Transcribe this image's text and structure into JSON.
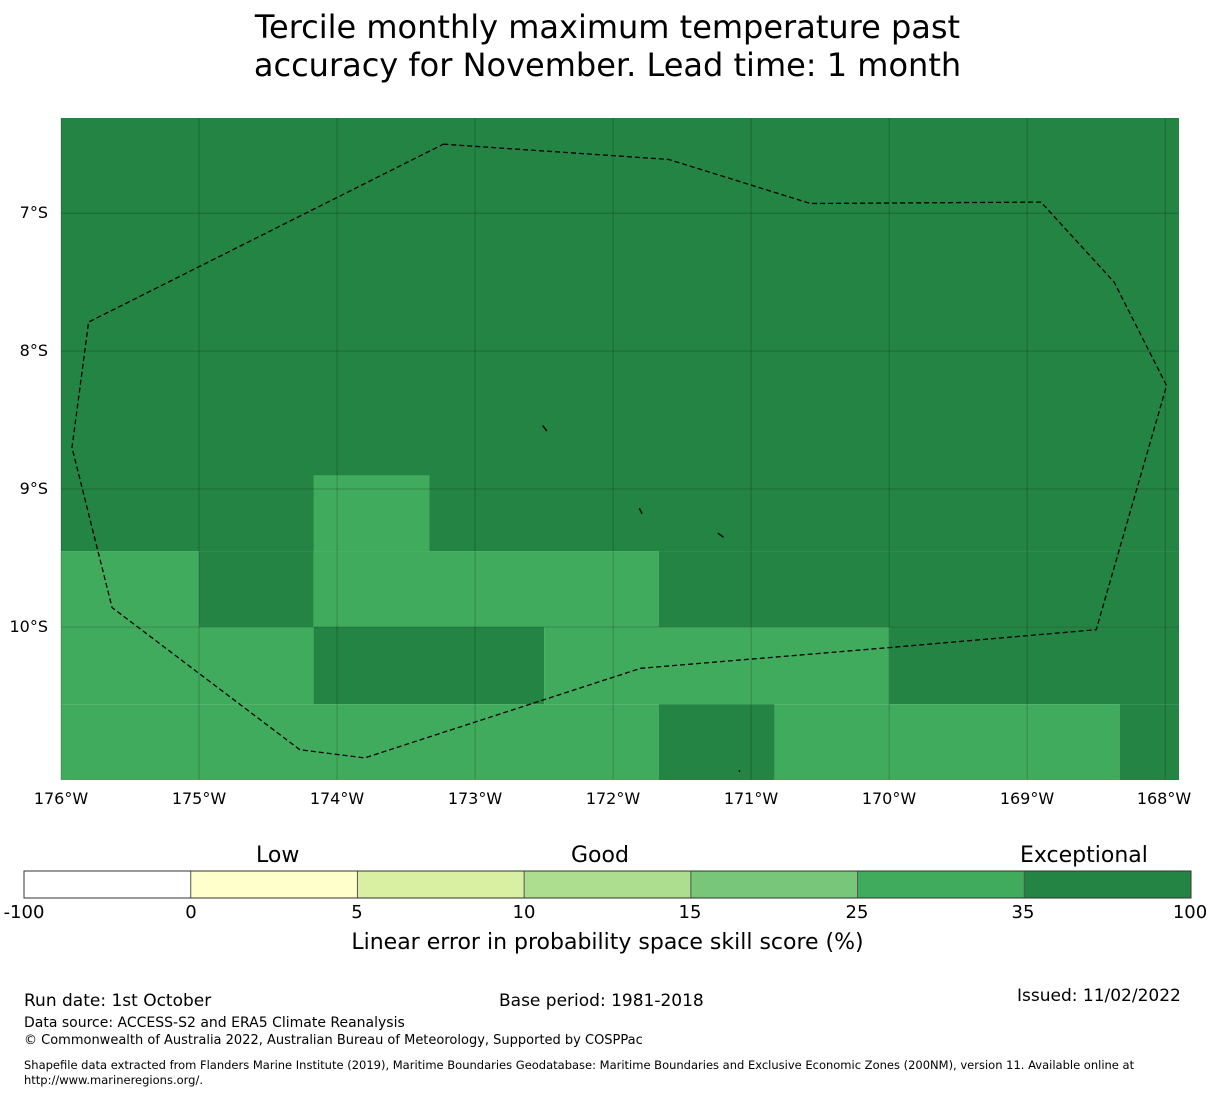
{
  "title_lines": [
    "Tercile monthly maximum temperature past",
    "accuracy for November. Lead time: 1 month"
  ],
  "map": {
    "lat_labels": [
      "7°S",
      "8°S",
      "9°S",
      "10°S"
    ],
    "lon_labels": [
      "176°W",
      "175°W",
      "174°W",
      "173°W",
      "172°W",
      "171°W",
      "170°W",
      "169°W",
      "168°W"
    ],
    "extent": {
      "lon_min": -176,
      "lon_max": -167.9,
      "lat_top": -6.31,
      "lat_bottom": -11.11
    },
    "cells": [
      {
        "lon": [
          -176,
          -167.9
        ],
        "lat": [
          -6.31,
          -9.45
        ],
        "category": "35-100"
      },
      {
        "lon": [
          -174.17,
          -173.33
        ],
        "lat": [
          -8.9,
          -9.45
        ],
        "category": "25-35"
      },
      {
        "lon": [
          -176,
          -175
        ],
        "lat": [
          -9.45,
          -10.0
        ],
        "category": "25-35"
      },
      {
        "lon": [
          -175,
          -174.17
        ],
        "lat": [
          -9.45,
          -10.0
        ],
        "category": "35-100"
      },
      {
        "lon": [
          -174.17,
          -171.67
        ],
        "lat": [
          -9.45,
          -10.0
        ],
        "category": "25-35"
      },
      {
        "lon": [
          -171.67,
          -167.9
        ],
        "lat": [
          -9.45,
          -10.0
        ],
        "category": "35-100"
      },
      {
        "lon": [
          -176,
          -174.17
        ],
        "lat": [
          -10.0,
          -10.56
        ],
        "category": "25-35"
      },
      {
        "lon": [
          -174.17,
          -172.5
        ],
        "lat": [
          -10.0,
          -10.56
        ],
        "category": "35-100"
      },
      {
        "lon": [
          -172.5,
          -170.0
        ],
        "lat": [
          -10.0,
          -10.56
        ],
        "category": "25-35"
      },
      {
        "lon": [
          -170.0,
          -167.9
        ],
        "lat": [
          -10.0,
          -10.56
        ],
        "category": "35-100"
      },
      {
        "lon": [
          -176,
          -171.67
        ],
        "lat": [
          -10.56,
          -11.11
        ],
        "category": "25-35"
      },
      {
        "lon": [
          -171.67,
          -170.83
        ],
        "lat": [
          -10.56,
          -11.11
        ],
        "category": "35-100"
      },
      {
        "lon": [
          -170.83,
          -168.33
        ],
        "lat": [
          -10.56,
          -11.11
        ],
        "category": "25-35"
      },
      {
        "lon": [
          -168.33,
          -167.9
        ],
        "lat": [
          -10.56,
          -11.11
        ],
        "category": "35-100"
      }
    ],
    "eez_boundary": [
      [
        -173.23,
        -6.5
      ],
      [
        -171.6,
        -6.61
      ],
      [
        -170.57,
        -6.93
      ],
      [
        -168.9,
        -6.92
      ],
      [
        -168.37,
        -7.5
      ],
      [
        -167.99,
        -8.25
      ],
      [
        -168.5,
        -10.02
      ],
      [
        -170.0,
        -10.15
      ],
      [
        -171.8,
        -10.3
      ],
      [
        -173.8,
        -10.95
      ],
      [
        -174.27,
        -10.89
      ],
      [
        -175.63,
        -9.86
      ],
      [
        -175.92,
        -8.7
      ],
      [
        -175.8,
        -7.79
      ],
      [
        -173.23,
        -6.5
      ]
    ],
    "islands": [
      [
        [
          -172.51,
          -8.54
        ],
        [
          -172.48,
          -8.58
        ]
      ],
      [
        [
          -171.81,
          -9.14
        ],
        [
          -171.79,
          -9.18
        ]
      ],
      [
        [
          -171.24,
          -9.32
        ],
        [
          -171.2,
          -9.35
        ]
      ],
      [
        [
          -171.09,
          -11.04
        ],
        [
          -171.08,
          -11.05
        ]
      ]
    ]
  },
  "colorbar": {
    "categories": [
      "Low",
      "Good",
      "Exceptional"
    ],
    "ticks": [
      "-100",
      "0",
      "5",
      "10",
      "15",
      "25",
      "35",
      "100"
    ],
    "colors": [
      "#ffffff",
      "#ffffcc",
      "#d9f0a3",
      "#addd8e",
      "#78c679",
      "#41ab5d",
      "#238443"
    ],
    "title": "Linear error in probability space skill score (%)"
  },
  "category_colors": {
    "25-35": "#41ab5d",
    "35-100": "#238443"
  },
  "footer": {
    "run_date": "Run date: 1st October",
    "base_period": "Base period: 1981-2018",
    "issued": "Issued: 11/02/2022",
    "data_source": "Data source: ACCESS-S2 and ERA5 Climate Reanalysis",
    "copyright": "© Commonwealth of Australia 2022, Australian Bureau of Meteorology, Supported by COSPPac",
    "shapefile_line1": "Shapefile data extracted from Flanders Marine Institute (2019), Maritime Boundaries Geodatabase: Maritime Boundaries and Exclusive Economic Zones (200NM), version 11. Available online at",
    "shapefile_line2": "http://www.marineregions.org/."
  }
}
